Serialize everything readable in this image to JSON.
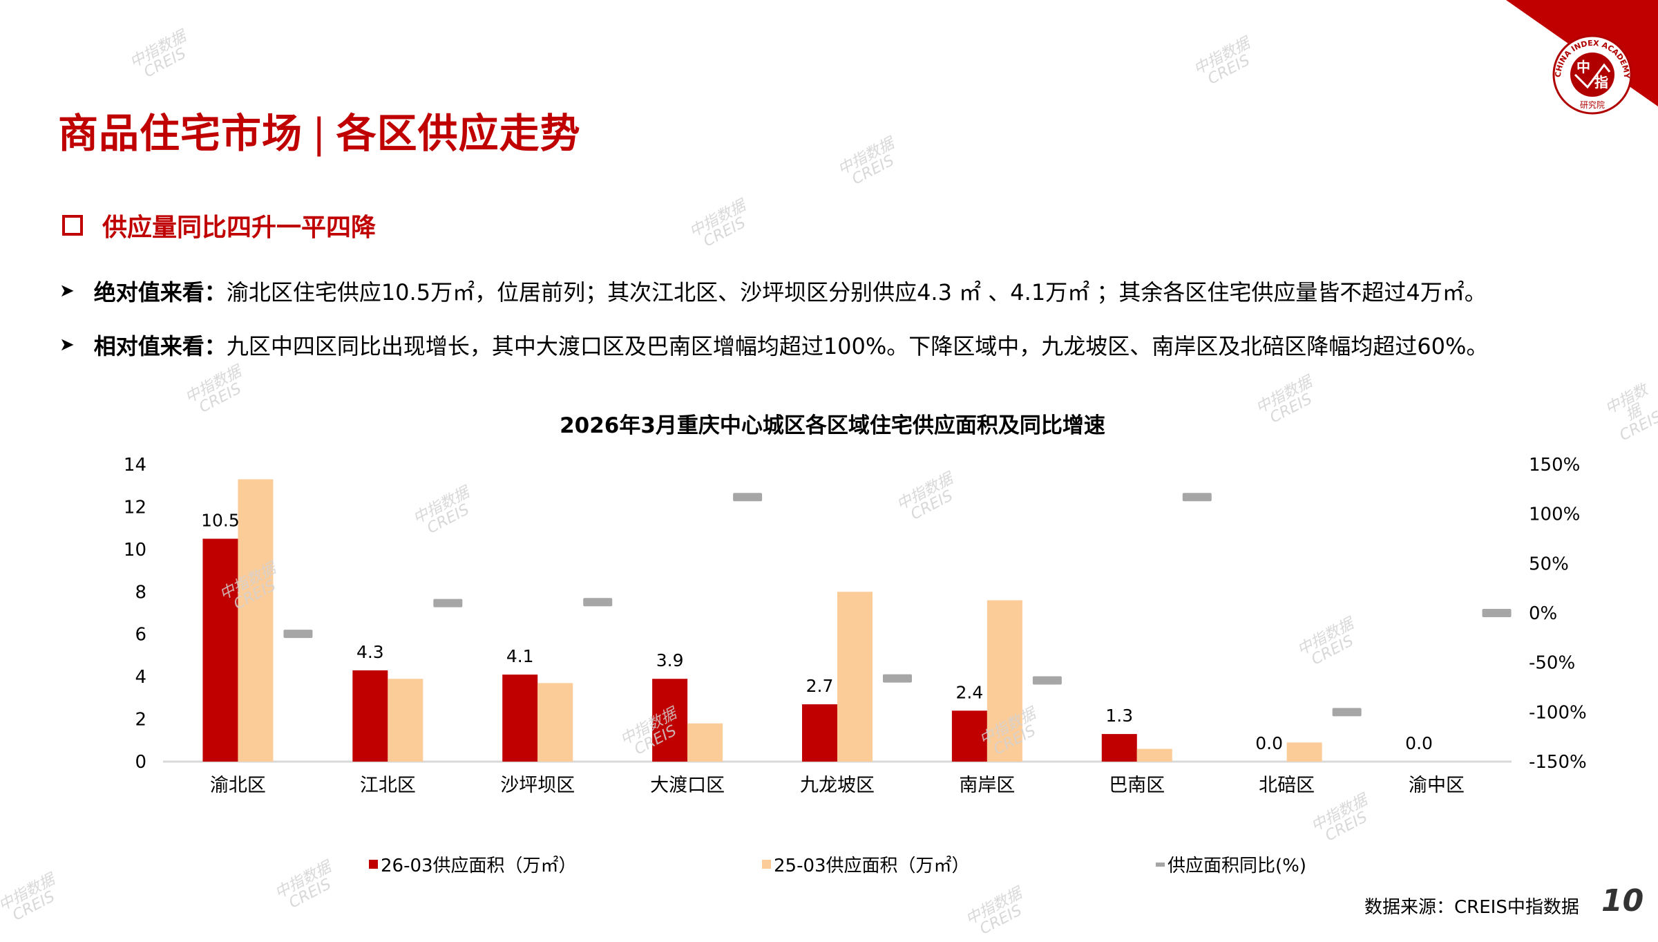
{
  "header": {
    "title_left": "商品住宅市场",
    "title_separator": "|",
    "title_right": "各区供应走势",
    "brand_color": "#C00000"
  },
  "logo": {
    "ring_text": "CHINA INDEX ACADEMY",
    "center_text": [
      "中",
      "指"
    ],
    "bottom_text": "研究院"
  },
  "section": {
    "heading": "供应量同比四升一平四降",
    "bullets": [
      {
        "label": "绝对值来看：",
        "text": "渝北区住宅供应10.5万㎡，位居前列；其次江北区、沙坪坝区分别供应4.3 ㎡ 、4.1万㎡ ；其余各区住宅供应量皆不超过4万㎡。"
      },
      {
        "label": "相对值来看：",
        "text": "九区中四区同比出现增长，其中大渡口区及巴南区增幅均超过100%。下降区域中，九龙坡区、南岸区及北碚区降幅均超过60%。"
      }
    ]
  },
  "chart_data": {
    "type": "bar",
    "title": "2026年3月重庆中心城区各区域住宅供应面积及同比增速",
    "categories": [
      "渝北区",
      "江北区",
      "沙坪坝区",
      "大渡口区",
      "九龙坡区",
      "南岸区",
      "巴南区",
      "北碚区",
      "渝中区"
    ],
    "series": [
      {
        "name": "26-03供应面积（万㎡）",
        "axis": "left",
        "kind": "bar",
        "color": "#C00000",
        "values": [
          10.5,
          4.3,
          4.1,
          3.9,
          2.7,
          2.4,
          1.3,
          0.0,
          0.0
        ],
        "data_labels": [
          "10.5",
          "4.3",
          "4.1",
          "3.9",
          "2.7",
          "2.4",
          "1.3",
          "0.0",
          "0.0"
        ]
      },
      {
        "name": "25-03供应面积（万㎡）",
        "axis": "left",
        "kind": "bar",
        "color": "#FBCB98",
        "values": [
          13.3,
          3.9,
          3.7,
          1.8,
          8.0,
          7.6,
          0.6,
          0.9,
          0.0
        ]
      },
      {
        "name": "供应面积同比(%)",
        "axis": "right",
        "kind": "marker",
        "color": "#A6A6A6",
        "values": [
          -21,
          10,
          11,
          117,
          -66,
          -68,
          117,
          -100,
          0
        ]
      }
    ],
    "left_axis": {
      "ylim": [
        0,
        14
      ],
      "ticks": [
        "0",
        "2",
        "4",
        "6",
        "8",
        "10",
        "12",
        "14"
      ]
    },
    "right_axis": {
      "ylim": [
        -150,
        150
      ],
      "ticks": [
        "-150%",
        "-100%",
        "-50%",
        "0%",
        "50%",
        "100%",
        "150%"
      ]
    },
    "grid": false,
    "legend_position": "bottom"
  },
  "footer": {
    "source": "数据来源：CREIS中指数据",
    "page_number": "10"
  },
  "watermark": {
    "line1": "中指数据",
    "line2": "CREIS"
  }
}
